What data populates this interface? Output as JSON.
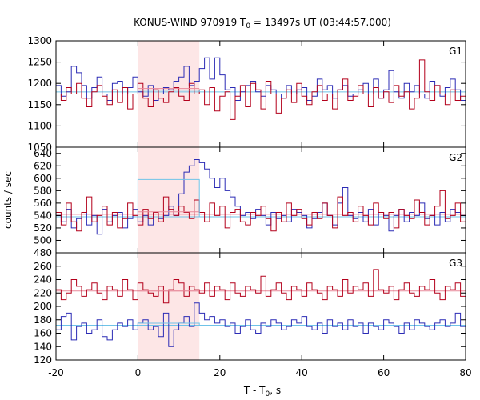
{
  "chart_data": {
    "type": "line",
    "title": "KONUS-WIND 970919 T",
    "title_sub": "0",
    "title_rest": " = 13497s UT (03:44:57.000)",
    "xlabel": "T - T",
    "xlabel_sub": "0",
    "xlabel_rest": ", s",
    "ylabel": "counts / sec",
    "xlim": [
      -20,
      80
    ],
    "xticks": [
      -20,
      0,
      20,
      40,
      60,
      80
    ],
    "grid": false,
    "highlight_interval": [
      0,
      15
    ],
    "colors": {
      "blue": "#2b2bb5",
      "red": "#b3001b",
      "bg_blue": "#6fc3e8",
      "bg_red": "#e8899a",
      "shade": "#fde6e6"
    },
    "panels": [
      {
        "label": "G1",
        "ylim": [
          1050,
          1300
        ],
        "yticks": [
          1050,
          1100,
          1150,
          1200,
          1250,
          1300
        ],
        "background": {
          "blue": 1180,
          "red": 1175
        },
        "level": {
          "blue": 1184,
          "red": 1188,
          "from": 0,
          "to": 15
        },
        "series": [
          {
            "color": "blue",
            "x_start": -20,
            "dt": 1.25,
            "values": [
              1195,
              1170,
              1180,
              1240,
              1225,
              1195,
              1165,
              1190,
              1215,
              1175,
              1160,
              1200,
              1205,
              1175,
              1190,
              1215,
              1180,
              1170,
              1195,
              1160,
              1175,
              1190,
              1185,
              1205,
              1215,
              1240,
              1195,
              1205,
              1235,
              1260,
              1210,
              1260,
              1220,
              1185,
              1190,
              1160,
              1180,
              1195,
              1205,
              1180,
              1170,
              1195,
              1185,
              1175,
              1165,
              1195,
              1175,
              1185,
              1190,
              1160,
              1170,
              1210,
              1185,
              1195,
              1165,
              1185,
              1195,
              1170,
              1175,
              1185,
              1200,
              1175,
              1210,
              1165,
              1185,
              1230,
              1180,
              1165,
              1200,
              1180,
              1195,
              1175,
              1165,
              1205,
              1195,
              1170,
              1190,
              1210,
              1185,
              1160,
              1175,
              1180,
              1210,
              1195,
              1175,
              1190,
              1175,
              1165,
              1195,
              1160,
              1175,
              1205,
              1215,
              1170,
              1145,
              1185,
              1195,
              1180,
              1175,
              1165
            ]
          },
          {
            "color": "red",
            "x_start": -20,
            "dt": 1.25,
            "values": [
              1175,
              1160,
              1190,
              1175,
              1200,
              1165,
              1145,
              1180,
              1195,
              1170,
              1150,
              1185,
              1155,
              1190,
              1140,
              1175,
              1200,
              1165,
              1145,
              1185,
              1165,
              1155,
              1180,
              1190,
              1170,
              1160,
              1200,
              1175,
              1185,
              1150,
              1190,
              1135,
              1170,
              1180,
              1115,
              1170,
              1195,
              1145,
              1200,
              1185,
              1140,
              1205,
              1175,
              1130,
              1165,
              1185,
              1155,
              1200,
              1170,
              1150,
              1180,
              1195,
              1160,
              1175,
              1140,
              1185,
              1210,
              1160,
              1170,
              1195,
              1175,
              1145,
              1190,
              1165,
              1180,
              1155,
              1195,
              1170,
              1180,
              1140,
              1165,
              1255,
              1180,
              1160,
              1195,
              1175,
              1150,
              1185,
              1160,
              1170,
              1200,
              1180,
              1150,
              1175,
              1190,
              1165,
              1155,
              1195,
              1175,
              1185,
              1160,
              1200,
              1165,
              1170,
              1180,
              1185,
              1110,
              1195,
              1210,
              1180
            ]
          }
        ]
      },
      {
        "label": "G2",
        "ylim": [
          480,
          650
        ],
        "yticks": [
          480,
          500,
          520,
          540,
          560,
          580,
          600,
          620,
          640
        ],
        "background": {
          "blue": 538,
          "red": 542
        },
        "level": {
          "blue": 598,
          "red": 546,
          "from": 0,
          "to": 15
        },
        "series": [
          {
            "color": "blue",
            "x_start": -20,
            "dt": 1.25,
            "values": [
              540,
              530,
              550,
              520,
              535,
              545,
              525,
              540,
              510,
              550,
              530,
              540,
              545,
              520,
              535,
              550,
              530,
              540,
              525,
              545,
              535,
              540,
              555,
              540,
              575,
              610,
              620,
              630,
              625,
              615,
              600,
              585,
              600,
              580,
              570,
              555,
              540,
              545,
              535,
              550,
              540,
              525,
              545,
              535,
              540,
              530,
              550,
              545,
              540,
              520,
              535,
              545,
              560,
              540,
              525,
              560,
              585,
              540,
              535,
              545,
              530,
              550,
              525,
              545,
              540,
              515,
              540,
              550,
              530,
              545,
              540,
              560,
              535,
              540,
              525,
              545,
              530,
              550,
              545,
              540,
              520,
              540,
              550,
              535,
              545,
              540,
              530,
              545,
              540,
              535,
              550,
              540,
              530,
              545,
              535,
              540,
              525,
              545,
              540,
              535
            ]
          },
          {
            "color": "red",
            "x_start": -20,
            "dt": 1.25,
            "values": [
              545,
              525,
              560,
              530,
              515,
              545,
              570,
              530,
              540,
              555,
              525,
              545,
              520,
              535,
              560,
              540,
              525,
              550,
              535,
              545,
              530,
              570,
              550,
              540,
              555,
              545,
              535,
              565,
              545,
              530,
              560,
              540,
              555,
              520,
              545,
              550,
              530,
              525,
              545,
              540,
              555,
              535,
              515,
              545,
              530,
              560,
              540,
              550,
              535,
              525,
              545,
              535,
              560,
              540,
              520,
              570,
              540,
              545,
              530,
              555,
              540,
              525,
              560,
              545,
              535,
              545,
              520,
              550,
              540,
              535,
              565,
              545,
              525,
              540,
              555,
              580,
              535,
              540,
              560,
              530,
              550,
              545,
              540,
              525,
              555,
              545,
              535,
              550,
              540,
              525,
              545,
              560,
              540,
              530,
              545,
              540,
              525,
              545,
              535,
              550
            ]
          }
        ]
      },
      {
        "label": "G3",
        "ylim": [
          120,
          280
        ],
        "yticks": [
          120,
          140,
          160,
          180,
          200,
          220,
          240,
          260
        ],
        "background": {
          "blue": 172,
          "red": 223
        },
        "level": {
          "blue": 175,
          "red": 223,
          "from": 0,
          "to": 15
        },
        "series": [
          {
            "color": "blue",
            "x_start": -20,
            "dt": 1.25,
            "values": [
              165,
              185,
              190,
              150,
              170,
              175,
              160,
              165,
              180,
              155,
              150,
              165,
              175,
              170,
              180,
              165,
              175,
              180,
              165,
              170,
              155,
              190,
              140,
              165,
              175,
              185,
              170,
              205,
              190,
              180,
              185,
              175,
              180,
              170,
              175,
              160,
              170,
              180,
              165,
              160,
              175,
              170,
              180,
              175,
              165,
              170,
              180,
              175,
              185,
              170,
              165,
              175,
              160,
              180,
              170,
              175,
              165,
              180,
              170,
              175,
              160,
              175,
              170,
              165,
              180,
              175,
              170,
              160,
              175,
              165,
              180,
              175,
              170,
              165,
              175,
              180,
              170,
              175,
              190,
              170,
              165,
              175,
              180,
              170,
              160,
              175,
              165,
              180,
              175,
              170,
              165,
              180,
              175,
              170,
              160,
              175,
              170,
              165,
              180,
              175
            ]
          },
          {
            "color": "red",
            "x_start": -20,
            "dt": 1.25,
            "values": [
              225,
              210,
              220,
              240,
              230,
              215,
              225,
              235,
              220,
              210,
              230,
              225,
              215,
              240,
              225,
              210,
              235,
              225,
              220,
              215,
              230,
              205,
              225,
              240,
              235,
              215,
              230,
              225,
              220,
              235,
              215,
              230,
              225,
              210,
              235,
              220,
              215,
              230,
              225,
              220,
              245,
              215,
              225,
              235,
              220,
              210,
              230,
              225,
              215,
              235,
              225,
              220,
              210,
              230,
              225,
              215,
              240,
              220,
              230,
              225,
              235,
              215,
              255,
              225,
              220,
              230,
              210,
              225,
              235,
              220,
              215,
              230,
              225,
              240,
              220,
              210,
              230,
              225,
              235,
              215,
              225,
              240,
              220,
              230,
              215,
              225,
              235,
              220,
              210,
              230,
              245,
              220,
              225,
              215,
              230,
              225,
              235,
              220,
              215,
              225
            ]
          }
        ]
      }
    ]
  }
}
